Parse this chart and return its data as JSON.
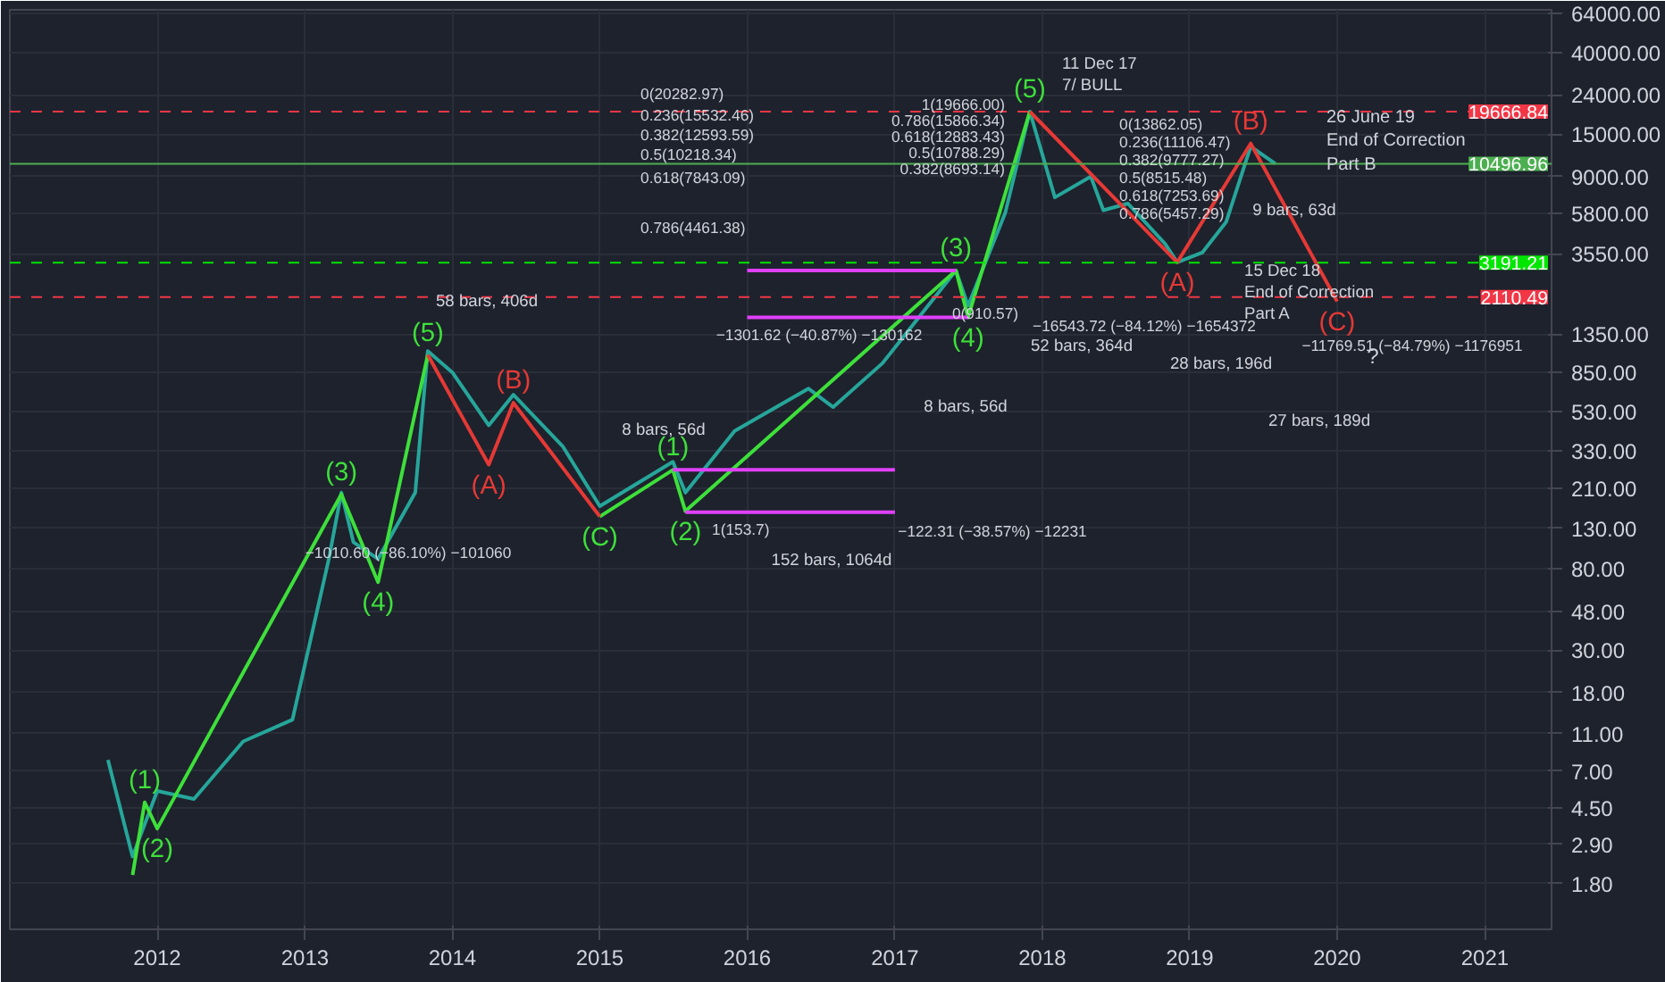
{
  "chart_data": {
    "type": "line",
    "log": "y",
    "grid": true,
    "marker": "none",
    "line_style": "solid",
    "xlim": [
      "2011-01-01",
      "2021-06-15"
    ],
    "ylim": [
      1.04,
      67000
    ],
    "xticks": [
      "2012",
      "2013",
      "2014",
      "2015",
      "2016",
      "2017",
      "2018",
      "2019",
      "2020",
      "2021"
    ],
    "yticks": [
      {
        "value": 1.8,
        "label": "1.80"
      },
      {
        "value": 2.9,
        "label": "2.90"
      },
      {
        "value": 4.5,
        "label": "4.50"
      },
      {
        "value": 7,
        "label": "7.00"
      },
      {
        "value": 11,
        "label": "11.00"
      },
      {
        "value": 18,
        "label": "18.00"
      },
      {
        "value": 30,
        "label": "30.00"
      },
      {
        "value": 48,
        "label": "48.00"
      },
      {
        "value": 80,
        "label": "80.00"
      },
      {
        "value": 130,
        "label": "130.00"
      },
      {
        "value": 210,
        "label": "210.00"
      },
      {
        "value": 330,
        "label": "330.00"
      },
      {
        "value": 530,
        "label": "530.00"
      },
      {
        "value": 850,
        "label": "850.00"
      },
      {
        "value": 1350,
        "label": "1350.00"
      },
      {
        "value": 3550,
        "label": "3550.00"
      },
      {
        "value": 5800,
        "label": "5800.00"
      },
      {
        "value": 9000,
        "label": "9000.00"
      },
      {
        "value": 15000,
        "label": "15000.00"
      },
      {
        "value": 24000,
        "label": "24000.00"
      },
      {
        "value": 40000,
        "label": "40000.00"
      },
      {
        "value": 64000,
        "label": "64000.00"
      }
    ],
    "series": [
      {
        "color": "#26a69a",
        "x": [
          "2011-09",
          "2011-11",
          "2012-01",
          "2012-04",
          "2012-08",
          "2012-12",
          "2013-03",
          "2013-04",
          "2013-05",
          "2013-07",
          "2013-10",
          "2013-11",
          "2014-01",
          "2014-04",
          "2014-06",
          "2014-10",
          "2015-01",
          "2015-07",
          "2015-08",
          "2015-12",
          "2016-06",
          "2016-08",
          "2016-12",
          "2017-06",
          "2017-07",
          "2017-10",
          "2017-12",
          "2018-02",
          "2018-05",
          "2018-06",
          "2018-08",
          "2018-11",
          "2018-12",
          "2019-02",
          "2019-04",
          "2019-06",
          "2019-08"
        ],
        "values": [
          8,
          2.5,
          5.5,
          5,
          10,
          13,
          90,
          200,
          110,
          90,
          200,
          1100,
          850,
          450,
          650,
          350,
          170,
          290,
          200,
          420,
          700,
          560,
          950,
          2900,
          1900,
          5800,
          19666,
          7000,
          9000,
          6000,
          6500,
          4000,
          3200,
          3600,
          5200,
          12900,
          10500
        ]
      },
      {
        "color": "#3ee03a",
        "x": [
          "2011-11",
          "2011-12",
          "2012-01",
          "2013-04",
          "2013-07",
          "2013-11"
        ],
        "values": [
          2.0,
          4.8,
          3.5,
          196,
          68,
          1050
        ]
      },
      {
        "color": "#3ee03a",
        "x": [
          "2015-01",
          "2015-07",
          "2015-08",
          "2017-06",
          "2017-07",
          "2017-12"
        ],
        "values": [
          150,
          263,
          160,
          2900,
          1650,
          19666
        ]
      },
      {
        "color": "#e53935",
        "x": [
          "2013-11",
          "2014-04",
          "2014-06",
          "2015-01"
        ],
        "values": [
          1050,
          280,
          590,
          150
        ]
      },
      {
        "color": "#e53935",
        "x": [
          "2017-12",
          "2018-12",
          "2019-06",
          "2020-01"
        ],
        "values": [
          19666,
          3200,
          13400,
          2000
        ]
      },
      {
        "color": "#e040fb",
        "x": [
          "2016-01",
          "2017-06"
        ],
        "values": [
          2900,
          2900
        ]
      },
      {
        "color": "#e040fb",
        "x": [
          "2016-01",
          "2017-07"
        ],
        "values": [
          1650,
          1650
        ]
      },
      {
        "color": "#e040fb",
        "x": [
          "2015-07",
          "2017-01"
        ],
        "values": [
          263,
          263
        ]
      },
      {
        "color": "#e040fb",
        "x": [
          "2015-08",
          "2017-01"
        ],
        "values": [
          158,
          158
        ]
      }
    ],
    "ref_lines": [
      {
        "axis": "y",
        "value": 19666.84,
        "label": "19666.84",
        "color": "#f23645",
        "line_style": "dashed"
      },
      {
        "axis": "y",
        "value": 10496.96,
        "label": "10496.96",
        "color": "#4caf50",
        "line_style": "solid"
      },
      {
        "axis": "y",
        "value": 3191.21,
        "label": "3191.21",
        "color": "#00e600",
        "line_style": "dashed"
      },
      {
        "axis": "y",
        "value": 2110.49,
        "label": "2110.49",
        "color": "#f23645",
        "line_style": "dashed"
      }
    ],
    "annotations": [
      {
        "text": "(1)",
        "x": "2011-12",
        "y": 4.8
      },
      {
        "text": "(2)",
        "x": "2012-01",
        "y": 3.5
      },
      {
        "text": "(3)",
        "x": "2013-04",
        "y": 196
      },
      {
        "text": "(4)",
        "x": "2013-07",
        "y": 68
      },
      {
        "text": "(5)",
        "x": "2013-11",
        "y": 1050
      },
      {
        "text": "(1)",
        "x": "2015-07",
        "y": 263
      },
      {
        "text": "(2)",
        "x": "2015-08",
        "y": 160
      },
      {
        "text": "(3)",
        "x": "2017-06",
        "y": 2900
      },
      {
        "text": "(4)",
        "x": "2017-07",
        "y": 1650
      },
      {
        "text": "(5)",
        "x": "2017-12",
        "y": 19666
      },
      {
        "text": "(A)",
        "x": "2014-04",
        "y": 280
      },
      {
        "text": "(B)",
        "x": "2014-06",
        "y": 590
      },
      {
        "text": "(C)",
        "x": "2015-01",
        "y": 150
      },
      {
        "text": "(A)",
        "x": "2018-12",
        "y": 3200
      },
      {
        "text": "(B)",
        "x": "2019-06",
        "y": 13400
      },
      {
        "text": "(C)",
        "x": "2020-01",
        "y": 2000
      },
      "58 bars, 406d",
      "8 bars, 56d",
      "8 bars, 56d",
      "152 bars, 1064d",
      "52 bars, 364d",
      "28 bars, 196d",
      "27 bars, 189d",
      "9 bars, 63d",
      "−1301.62 (−40.87%) −130162",
      "−122.31 (−38.57%) −12231",
      "−1010.60 (−86.10%) −101060",
      "−16543.72 (−84.12%) −1654372",
      "−11769.51 (−84.79%) −1176951",
      "26 June 19\nEnd of Correction\nPart B",
      "15 Dec 18\nEnd of Correction\nPart A",
      "11 Dec 17\n7/ BULL",
      "?",
      "0(20282.97)",
      "0.236(15532.46)",
      "0.382(12593.59)",
      "0.5(10218.34)",
      "0.618(7843.09)",
      "0.786(4461.38)",
      "1(153.7)",
      "1(19666.00)",
      "0.786(15866.34)",
      "0.618(12883.43)",
      "0.5(10788.29)",
      "0.382(8693.14)",
      "0(910.57)",
      "0(13862.05)",
      "0.236(11106.47)",
      "0.382(9777.27)",
      "0.5(8515.48)",
      "0.618(7253.69)",
      "0.786(5457.29)"
    ]
  }
}
